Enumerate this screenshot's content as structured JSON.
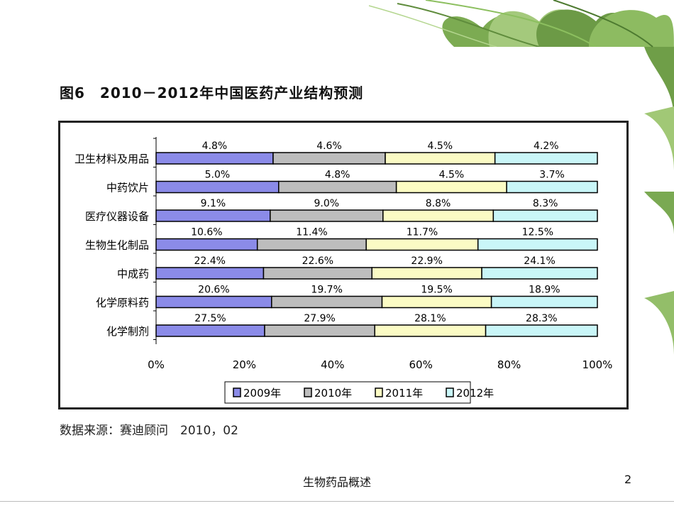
{
  "slide": {
    "figure_title": "图6　2010－2012年中国医药产业结构预测",
    "source_note": "数据来源：赛迪顾问　2010，02",
    "footer_title": "生物药品概述",
    "page_number": "2",
    "decoration": "clover-leaves"
  },
  "chart_data": {
    "type": "bar",
    "orientation": "horizontal",
    "stacked": true,
    "normalized": true,
    "categories": [
      "卫生材料及用品",
      "中药饮片",
      "医疗仪器设备",
      "生物生化制品",
      "中成药",
      "化学原料药",
      "化学制剂"
    ],
    "series": [
      {
        "name": "2009年",
        "color": "#8b8be8",
        "values": [
          4.8,
          5.0,
          9.1,
          10.6,
          22.4,
          20.6,
          27.5
        ],
        "labels": [
          "4.8%",
          "5.0%",
          "9.1%",
          "10.6%",
          "22.4%",
          "20.6%",
          "27.5%"
        ]
      },
      {
        "name": "2010年",
        "color": "#bdbdbd",
        "values": [
          4.6,
          4.8,
          9.0,
          11.4,
          22.6,
          19.7,
          27.9
        ],
        "labels": [
          "4.6%",
          "4.8%",
          "9.0%",
          "11.4%",
          "22.6%",
          "19.7%",
          "27.9%"
        ]
      },
      {
        "name": "2011年",
        "color": "#fbfbc4",
        "values": [
          4.5,
          4.5,
          8.8,
          11.7,
          22.9,
          19.5,
          28.1
        ],
        "labels": [
          "4.5%",
          "4.5%",
          "8.8%",
          "11.7%",
          "22.9%",
          "19.5%",
          "28.1%"
        ]
      },
      {
        "name": "2012年",
        "color": "#c9f6f8",
        "values": [
          4.2,
          3.7,
          8.3,
          12.5,
          24.1,
          18.9,
          28.3
        ],
        "labels": [
          "4.2%",
          "3.7%",
          "8.3%",
          "12.5%",
          "24.1%",
          "18.9%",
          "28.3%"
        ]
      }
    ],
    "xlim": [
      0,
      100
    ],
    "x_ticks": [
      "0%",
      "20%",
      "40%",
      "60%",
      "80%",
      "100%"
    ],
    "grid": false,
    "legend_position": "bottom"
  }
}
